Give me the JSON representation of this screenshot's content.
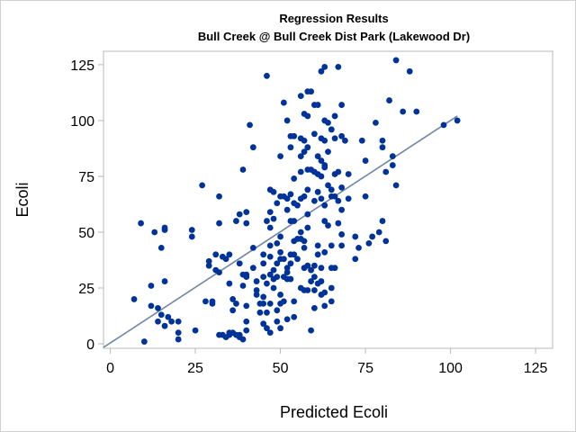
{
  "chart_data": {
    "type": "scatter",
    "title": "Regression Results",
    "subtitle": "Bull Creek @ Bull Creek Dist Park (Lakewood Dr)",
    "xlabel": "Predicted Ecoli",
    "ylabel": "Ecoli",
    "xlim": [
      -2,
      130
    ],
    "ylim": [
      -2,
      131
    ],
    "xticks": [
      0,
      25,
      50,
      75,
      100,
      125
    ],
    "yticks": [
      0,
      25,
      50,
      75,
      100,
      125
    ],
    "grid": false,
    "legend": "none",
    "colors": {
      "points": "#003399",
      "fit_line": "#6e86a6",
      "frame": "#b9b9b9"
    },
    "fit_line": {
      "x": [
        -2,
        102
      ],
      "y": [
        -1.6,
        102
      ]
    },
    "points": [
      [
        7,
        20
      ],
      [
        9,
        54
      ],
      [
        10,
        1
      ],
      [
        12,
        26
      ],
      [
        12,
        17
      ],
      [
        13,
        50
      ],
      [
        14,
        16
      ],
      [
        14,
        10
      ],
      [
        15,
        43
      ],
      [
        15,
        13
      ],
      [
        16,
        51
      ],
      [
        16,
        52
      ],
      [
        16,
        28
      ],
      [
        16,
        8
      ],
      [
        17,
        12
      ],
      [
        18,
        10
      ],
      [
        20,
        10
      ],
      [
        20,
        5
      ],
      [
        20,
        2
      ],
      [
        24,
        51
      ],
      [
        24,
        48
      ],
      [
        25,
        6
      ],
      [
        27,
        71
      ],
      [
        28,
        19
      ],
      [
        29,
        35
      ],
      [
        29,
        37
      ],
      [
        30,
        18
      ],
      [
        30,
        19
      ],
      [
        31,
        40
      ],
      [
        31,
        33
      ],
      [
        32,
        32
      ],
      [
        32,
        66
      ],
      [
        32,
        54
      ],
      [
        32,
        4
      ],
      [
        33,
        39
      ],
      [
        33,
        4
      ],
      [
        34,
        38
      ],
      [
        34,
        3
      ],
      [
        35,
        5
      ],
      [
        35,
        4
      ],
      [
        35,
        40
      ],
      [
        35,
        27
      ],
      [
        36,
        20
      ],
      [
        36,
        15
      ],
      [
        36,
        5
      ],
      [
        37,
        18
      ],
      [
        37,
        55
      ],
      [
        37,
        4
      ],
      [
        38,
        36
      ],
      [
        38,
        4
      ],
      [
        38,
        3
      ],
      [
        38,
        58
      ],
      [
        39,
        31
      ],
      [
        39,
        26
      ],
      [
        39,
        78
      ],
      [
        39,
        2
      ],
      [
        40,
        54
      ],
      [
        40,
        59
      ],
      [
        40,
        31
      ],
      [
        40,
        30
      ],
      [
        40,
        17
      ],
      [
        40,
        10
      ],
      [
        40,
        6
      ],
      [
        41,
        98
      ],
      [
        42,
        88
      ],
      [
        42,
        43
      ],
      [
        42,
        34
      ],
      [
        43,
        28
      ],
      [
        43,
        24
      ],
      [
        43,
        22
      ],
      [
        44,
        18
      ],
      [
        44,
        14
      ],
      [
        45,
        36
      ],
      [
        45,
        40
      ],
      [
        45,
        30
      ],
      [
        45,
        21
      ],
      [
        45,
        18
      ],
      [
        45,
        9
      ],
      [
        46,
        120
      ],
      [
        46,
        55
      ],
      [
        46,
        27
      ],
      [
        46,
        14
      ],
      [
        46,
        7
      ],
      [
        47,
        69
      ],
      [
        47,
        59
      ],
      [
        47,
        52
      ],
      [
        47,
        44
      ],
      [
        47,
        39
      ],
      [
        47,
        31
      ],
      [
        47,
        18
      ],
      [
        47,
        5
      ],
      [
        48,
        68
      ],
      [
        48,
        56
      ],
      [
        48,
        33
      ],
      [
        48,
        29
      ],
      [
        48,
        25
      ],
      [
        49,
        63
      ],
      [
        49,
        45
      ],
      [
        49,
        36
      ],
      [
        49,
        30
      ],
      [
        49,
        15
      ],
      [
        49,
        10
      ],
      [
        50,
        84
      ],
      [
        50,
        66
      ],
      [
        50,
        48
      ],
      [
        50,
        41
      ],
      [
        50,
        38
      ],
      [
        50,
        22
      ],
      [
        50,
        18
      ],
      [
        50,
        7
      ],
      [
        51,
        108
      ],
      [
        51,
        66
      ],
      [
        51,
        38
      ],
      [
        51,
        30
      ],
      [
        51,
        19
      ],
      [
        52,
        100
      ],
      [
        52,
        65
      ],
      [
        52,
        60
      ],
      [
        52,
        34
      ],
      [
        52,
        32
      ],
      [
        52,
        29
      ],
      [
        52,
        11
      ],
      [
        53,
        93
      ],
      [
        53,
        88
      ],
      [
        53,
        67
      ],
      [
        53,
        55
      ],
      [
        53,
        40
      ],
      [
        53,
        36
      ],
      [
        53,
        29
      ],
      [
        54,
        93
      ],
      [
        54,
        74
      ],
      [
        54,
        63
      ],
      [
        54,
        55
      ],
      [
        54,
        46
      ],
      [
        54,
        40
      ],
      [
        54,
        19
      ],
      [
        54,
        12
      ],
      [
        55,
        62
      ],
      [
        55,
        47
      ],
      [
        55,
        38
      ],
      [
        56,
        111
      ],
      [
        56,
        92
      ],
      [
        56,
        84
      ],
      [
        56,
        77
      ],
      [
        56,
        65
      ],
      [
        56,
        50
      ],
      [
        56,
        47
      ],
      [
        56,
        25
      ],
      [
        57,
        103
      ],
      [
        57,
        91
      ],
      [
        57,
        86
      ],
      [
        57,
        66
      ],
      [
        57,
        46
      ],
      [
        57,
        43
      ],
      [
        57,
        34
      ],
      [
        57,
        24
      ],
      [
        58,
        113
      ],
      [
        58,
        102
      ],
      [
        58,
        88
      ],
      [
        58,
        78
      ],
      [
        58,
        69
      ],
      [
        58,
        58
      ],
      [
        58,
        52
      ],
      [
        58,
        35
      ],
      [
        58,
        24
      ],
      [
        59,
        113
      ],
      [
        59,
        78
      ],
      [
        59,
        33
      ],
      [
        59,
        28
      ],
      [
        59,
        6
      ],
      [
        60,
        107
      ],
      [
        60,
        94
      ],
      [
        60,
        77
      ],
      [
        60,
        64
      ],
      [
        60,
        35
      ],
      [
        60,
        30
      ],
      [
        60,
        24
      ],
      [
        60,
        16
      ],
      [
        61,
        107
      ],
      [
        61,
        84
      ],
      [
        61,
        76
      ],
      [
        61,
        68
      ],
      [
        61,
        44
      ],
      [
        61,
        40
      ],
      [
        61,
        27
      ],
      [
        62,
        122
      ],
      [
        62,
        92
      ],
      [
        62,
        82
      ],
      [
        62,
        75
      ],
      [
        62,
        65
      ],
      [
        62,
        34
      ],
      [
        62,
        28
      ],
      [
        62,
        22
      ],
      [
        63,
        124
      ],
      [
        63,
        100
      ],
      [
        63,
        91
      ],
      [
        63,
        80
      ],
      [
        63,
        79
      ],
      [
        63,
        62
      ],
      [
        63,
        55
      ],
      [
        63,
        41
      ],
      [
        63,
        23
      ],
      [
        63,
        17
      ],
      [
        64,
        99
      ],
      [
        64,
        86
      ],
      [
        64,
        71
      ],
      [
        64,
        53
      ],
      [
        65,
        96
      ],
      [
        65,
        96
      ],
      [
        65,
        69
      ],
      [
        65,
        66
      ],
      [
        65,
        44
      ],
      [
        65,
        34
      ],
      [
        65,
        25
      ],
      [
        65,
        19
      ],
      [
        66,
        102
      ],
      [
        66,
        92
      ],
      [
        66,
        76
      ],
      [
        66,
        66
      ],
      [
        66,
        34
      ],
      [
        67,
        124
      ],
      [
        67,
        77
      ],
      [
        67,
        64
      ],
      [
        67,
        54
      ],
      [
        68,
        107
      ],
      [
        68,
        93
      ],
      [
        68,
        70
      ],
      [
        68,
        60
      ],
      [
        68,
        49
      ],
      [
        68,
        44
      ],
      [
        69,
        91
      ],
      [
        70,
        76
      ],
      [
        70,
        65
      ],
      [
        72,
        38
      ],
      [
        72,
        48
      ],
      [
        73,
        43
      ],
      [
        74,
        91
      ],
      [
        75,
        82
      ],
      [
        75,
        66
      ],
      [
        76,
        45
      ],
      [
        77,
        48
      ],
      [
        78,
        99
      ],
      [
        79,
        50
      ],
      [
        80,
        91
      ],
      [
        80,
        88
      ],
      [
        80,
        55
      ],
      [
        81,
        77
      ],
      [
        81,
        46
      ],
      [
        82,
        109
      ],
      [
        83,
        80
      ],
      [
        83,
        84
      ],
      [
        84,
        127
      ],
      [
        84,
        71
      ],
      [
        86,
        104
      ],
      [
        88,
        122
      ],
      [
        90,
        104
      ],
      [
        98,
        98
      ],
      [
        102,
        100
      ]
    ]
  }
}
